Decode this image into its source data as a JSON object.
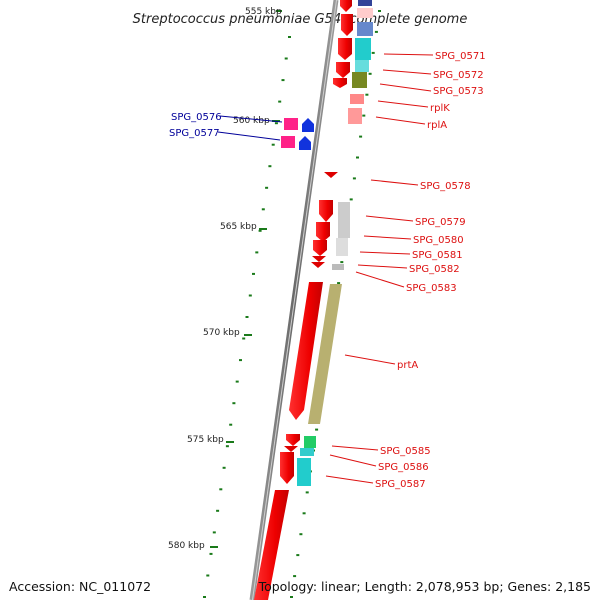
{
  "title": "Streptococcus pneumoniae G54, complete genome",
  "footer": {
    "accession": "Accession: NC_011072",
    "topology": "Topology: linear; Length: 2,078,953 bp; Genes: 2,185"
  },
  "ticks": [
    "555 kbp",
    "560 kbp",
    "565 kbp",
    "570 kbp",
    "575 kbp",
    "580 kbp"
  ],
  "genes": [
    {
      "label": "SPG_0571",
      "color": "#dd1111"
    },
    {
      "label": "SPG_0572",
      "color": "#dd1111"
    },
    {
      "label": "SPG_0573",
      "color": "#dd1111"
    },
    {
      "label": "rplK",
      "color": "#dd1111"
    },
    {
      "label": "rplA",
      "color": "#dd1111"
    },
    {
      "label": "SPG_0576",
      "color": "#000099"
    },
    {
      "label": "SPG_0577",
      "color": "#000099"
    },
    {
      "label": "SPG_0578",
      "color": "#dd1111"
    },
    {
      "label": "SPG_0579",
      "color": "#dd1111"
    },
    {
      "label": "SPG_0580",
      "color": "#dd1111"
    },
    {
      "label": "SPG_0581",
      "color": "#dd1111"
    },
    {
      "label": "SPG_0582",
      "color": "#dd1111"
    },
    {
      "label": "SPG_0583",
      "color": "#dd1111"
    },
    {
      "label": "prtA",
      "color": "#dd1111"
    },
    {
      "label": "SPG_0585",
      "color": "#dd1111"
    },
    {
      "label": "SPG_0586",
      "color": "#dd1111"
    },
    {
      "label": "SPG_0587",
      "color": "#dd1111"
    }
  ]
}
